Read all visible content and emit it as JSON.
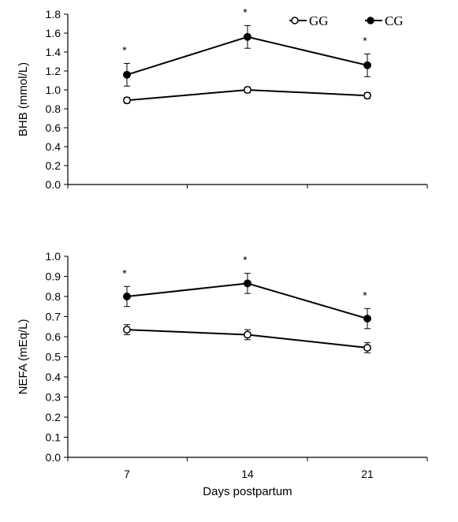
{
  "chart_data": [
    {
      "type": "line",
      "ylabel": "BHB (mmol/L)",
      "xlabel": "",
      "categories": [
        "7",
        "14",
        "21"
      ],
      "ylim": [
        0,
        1.8
      ],
      "ytick_step": 0.2,
      "ytick_labels": [
        "0.0",
        "0.2",
        "0.4",
        "0.6",
        "0.8",
        "1.0",
        "1.2",
        "1.4",
        "1.6",
        "1.8"
      ],
      "legend": {
        "placement": "top-right",
        "entries": [
          "GG",
          "CG"
        ]
      },
      "series": [
        {
          "name": "GG",
          "marker": "open-circle",
          "values": [
            0.89,
            1.0,
            0.94
          ],
          "errors": [
            0.03,
            0.03,
            0.03
          ],
          "significance": [
            "",
            "",
            ""
          ]
        },
        {
          "name": "CG",
          "marker": "filled-circle",
          "values": [
            1.16,
            1.56,
            1.26
          ],
          "errors": [
            0.12,
            0.12,
            0.12
          ],
          "significance": [
            "*",
            "*",
            "*"
          ]
        }
      ],
      "grid": false
    },
    {
      "type": "line",
      "ylabel": "NEFA  (mEq/L)",
      "xlabel": "Days postpartum",
      "categories": [
        "7",
        "14",
        "21"
      ],
      "ylim": [
        0,
        1.0
      ],
      "ytick_step": 0.1,
      "ytick_labels": [
        "0.0",
        "0.1",
        "0.2",
        "0.3",
        "0.4",
        "0.5",
        "0.6",
        "0.7",
        "0.8",
        "0.9",
        "1.0"
      ],
      "series": [
        {
          "name": "GG",
          "marker": "open-circle",
          "values": [
            0.635,
            0.61,
            0.545
          ],
          "errors": [
            0.025,
            0.025,
            0.025
          ],
          "significance": [
            "",
            "",
            ""
          ]
        },
        {
          "name": "CG",
          "marker": "filled-circle",
          "values": [
            0.8,
            0.865,
            0.69
          ],
          "errors": [
            0.05,
            0.05,
            0.05
          ],
          "significance": [
            "*",
            "*",
            "*"
          ]
        }
      ],
      "grid": false
    }
  ]
}
